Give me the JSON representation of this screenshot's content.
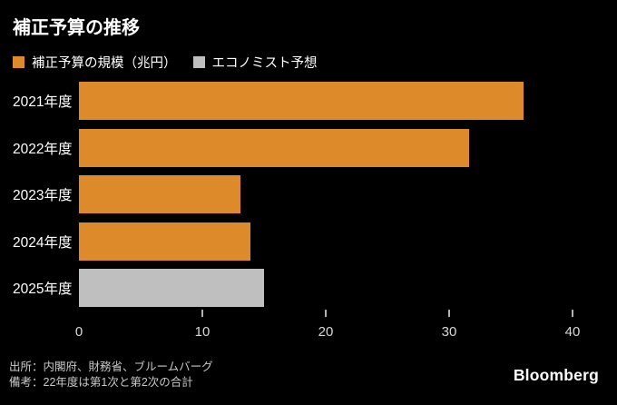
{
  "title": "補正予算の推移",
  "legend": {
    "items": [
      {
        "label": "補正予算の規模（兆円）",
        "color": "#DD8B2A"
      },
      {
        "label": "エコノミスト予想",
        "color": "#BFBFBF"
      }
    ]
  },
  "chart_data": {
    "type": "bar",
    "orientation": "horizontal",
    "title": "補正予算の推移",
    "categories": [
      "2021年度",
      "2022年度",
      "2023年度",
      "2024年度",
      "2025年度"
    ],
    "values": [
      36.0,
      31.6,
      13.1,
      13.9,
      15.0
    ],
    "bar_series": [
      "補正予算の規模（兆円）",
      "補正予算の規模（兆円）",
      "補正予算の規模（兆円）",
      "補正予算の規模（兆円）",
      "エコノミスト予想"
    ],
    "bar_colors": [
      "#DD8B2A",
      "#DD8B2A",
      "#DD8B2A",
      "#DD8B2A",
      "#BFBFBF"
    ],
    "xlabel": "",
    "ylabel": "",
    "xlim": [
      0,
      42.3
    ],
    "xticks": [
      0,
      10,
      20,
      30,
      40
    ],
    "grid": false,
    "legend_position": "top-left",
    "unit": "兆円"
  },
  "footer": {
    "source": "出所：内閣府、財務省、ブルームバーグ",
    "note": "備考：22年度は第1次と第2次の合計",
    "brand": "Bloomberg"
  },
  "colors": {
    "background": "#000000",
    "title_text": "#FFFFFF",
    "axis_text": "#D9D9D9",
    "footer_text": "#C9C9C9",
    "bar_orange": "#DD8B2A",
    "bar_gray": "#BFBFBF"
  }
}
